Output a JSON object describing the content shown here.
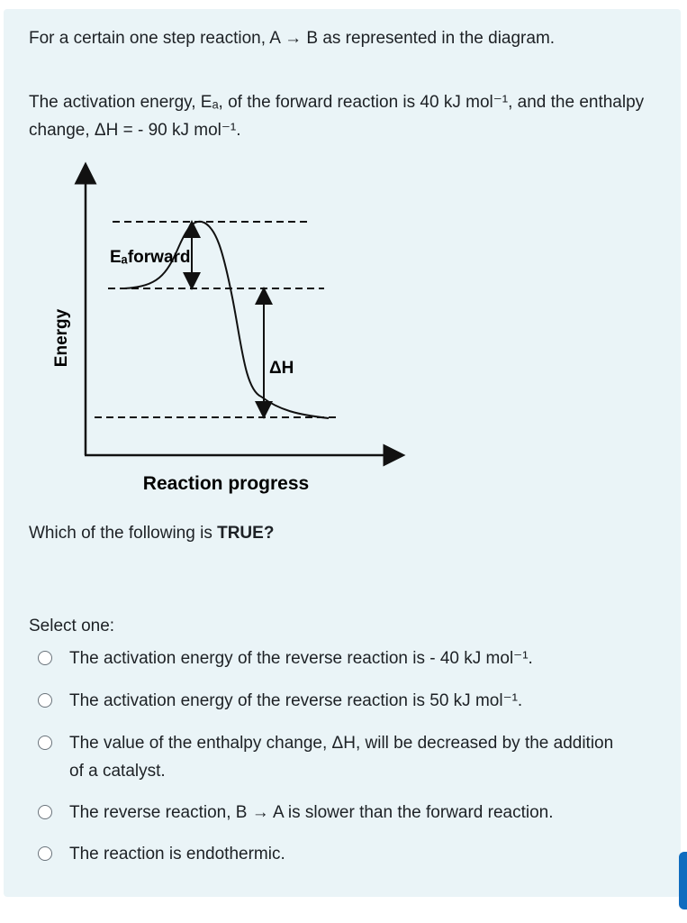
{
  "question": {
    "intro": "For a certain one step reaction,   A → B   as represented in the diagram.",
    "given": "The activation energy, Eₐ, of the forward reaction is 40 kJ mol⁻¹, and the enthalpy change, ΔH  = - 90 kJ mol⁻¹."
  },
  "diagram": {
    "y_axis_label": "Energy",
    "x_axis_label": "Reaction progress",
    "ea_label": "Eₐforward",
    "dh_label": "ΔH"
  },
  "prompt": {
    "text": "Which of the following is ",
    "emphasis": "TRUE?"
  },
  "select_label": "Select one:",
  "options": [
    "The activation energy of the reverse reaction is  - 40 kJ mol⁻¹.",
    "The activation energy of the reverse reaction is 50 kJ mol⁻¹.",
    "The value of the enthalpy change, ΔH, will be decreased by the addition of a catalyst.",
    "The reverse reaction,  B → A   is slower than the forward reaction.",
    "The reaction is endothermic."
  ]
}
